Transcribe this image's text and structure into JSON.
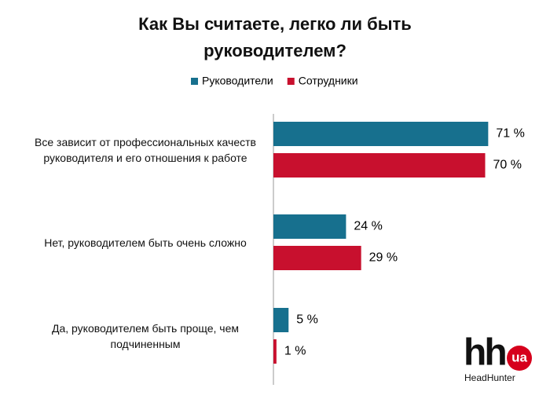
{
  "chart_data": {
    "type": "bar",
    "orientation": "horizontal",
    "title": "Как Вы считаете, легко ли быть руководителем?",
    "categories": [
      "Все зависит от профессиональных качеств руководителя и его отношения к работе",
      "Нет, руководителем быть очень сложно",
      "Да, руководителем быть проще, чем подчиненным"
    ],
    "series": [
      {
        "name": "Руководители",
        "color": "#17708e",
        "values": [
          71,
          24,
          5
        ],
        "value_labels": [
          "71 %",
          "24 %",
          "5 %"
        ]
      },
      {
        "name": "Сотрудники",
        "color": "#c8102e",
        "values": [
          70,
          29,
          1
        ],
        "value_labels": [
          "70 %",
          "29 %",
          "1 %"
        ]
      }
    ],
    "legend": "top"
  },
  "logo": {
    "mark": "hh",
    "badge": "ua",
    "name": "HeadHunter"
  }
}
